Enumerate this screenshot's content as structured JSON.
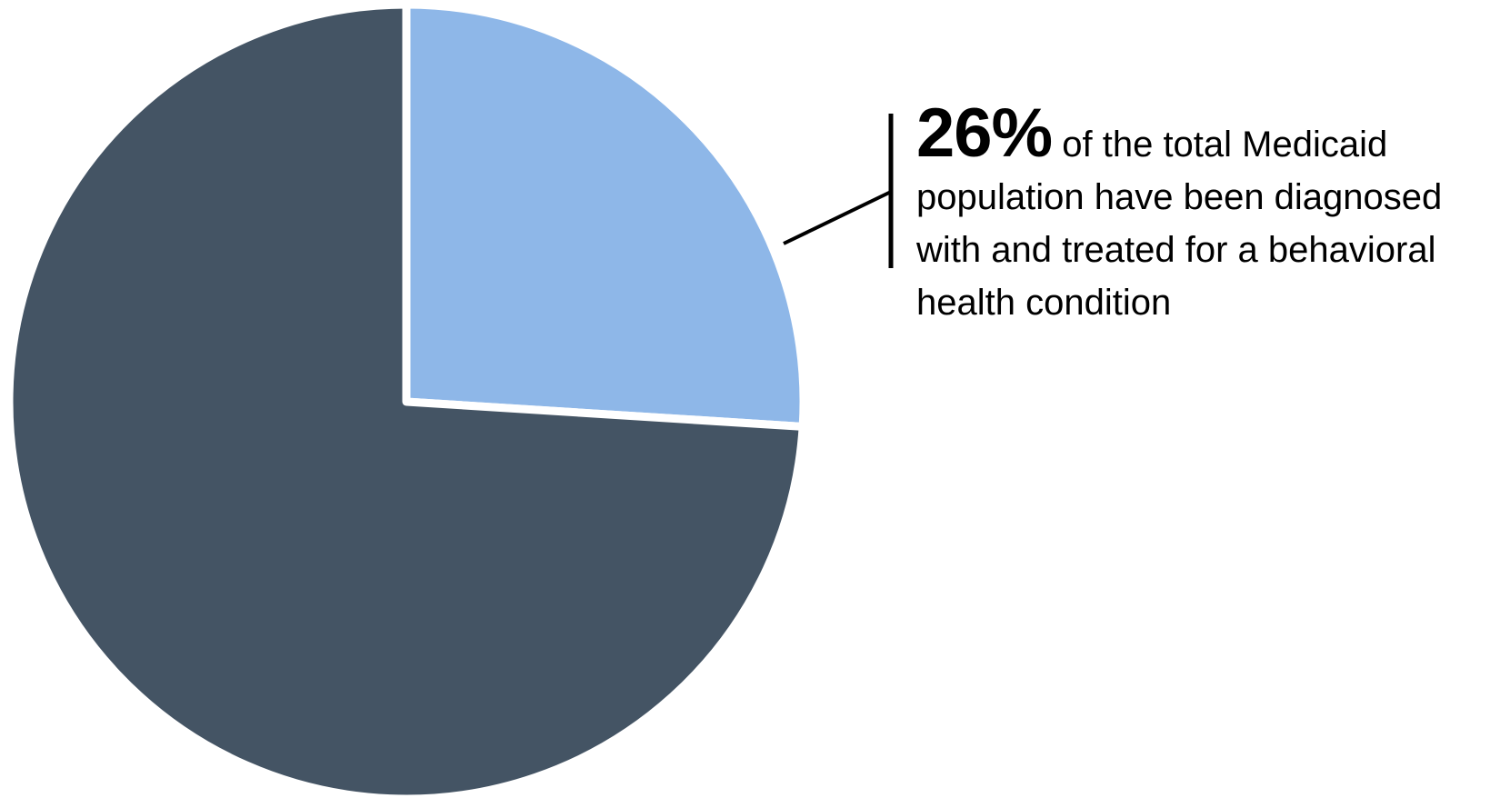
{
  "chart_data": {
    "type": "pie",
    "title": "",
    "slices": [
      {
        "label": "",
        "value": 26,
        "color": "#8eb7e8"
      },
      {
        "label": "",
        "value": 74,
        "color": "#445464"
      }
    ],
    "start_angle": "12 o'clock",
    "direction": "clockwise",
    "legend": "none",
    "annotation": {
      "value_text": "26%",
      "text": "of the total Medicaid population have been diagnosed with and treated for a behavioral health condition"
    }
  },
  "colors": {
    "highlight_slice": "#8eb7e8",
    "remainder_slice": "#445464",
    "separator": "#ffffff",
    "leader_line": "#000000"
  }
}
